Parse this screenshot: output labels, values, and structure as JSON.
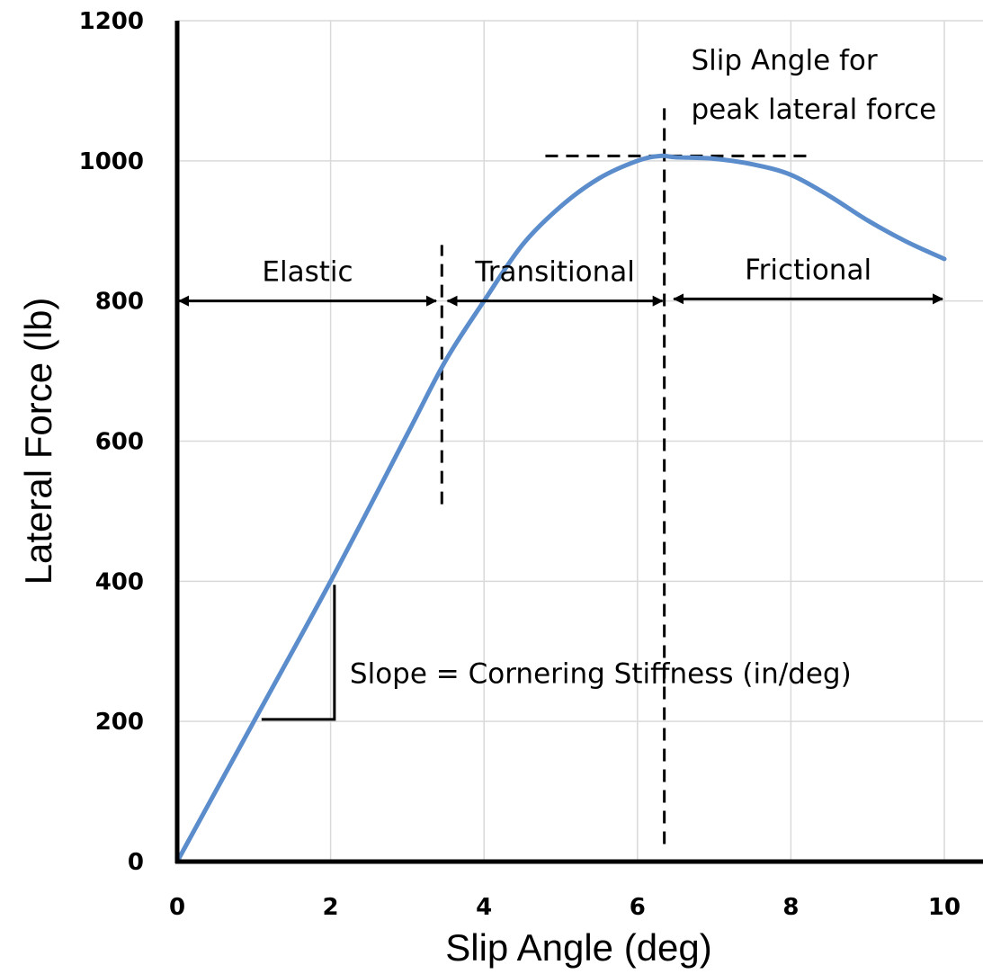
{
  "chart_data": {
    "type": "line",
    "title": "",
    "xlabel": "Slip Angle (deg)",
    "ylabel": "Lateral Force (lb)",
    "xlim": [
      0,
      10
    ],
    "ylim": [
      0,
      1200
    ],
    "x_ticks": [
      0,
      2,
      4,
      6,
      8,
      10
    ],
    "y_ticks": [
      0,
      200,
      400,
      600,
      800,
      1000,
      1200
    ],
    "grid": true,
    "series": [
      {
        "color": "#5b8ccb",
        "x": [
          0,
          1,
          2,
          3,
          3.5,
          4,
          4.5,
          5,
          5.5,
          6,
          6.3,
          6.5,
          7,
          7.5,
          8,
          8.5,
          9,
          9.5,
          10
        ],
        "y": [
          0,
          200,
          400,
          610,
          715,
          800,
          880,
          935,
          975,
          1000,
          1007,
          1005,
          1003,
          995,
          980,
          950,
          915,
          885,
          860
        ]
      }
    ],
    "regions": [
      {
        "label": "Elastic",
        "x_start": 0,
        "x_end": 3.4,
        "y": 800
      },
      {
        "label": "Transitional",
        "x_start": 3.5,
        "x_end": 6.35,
        "y": 800
      },
      {
        "label": "Frictional",
        "x_start": 6.45,
        "x_end": 10,
        "y": 803
      }
    ],
    "reference_lines": [
      {
        "orientation": "vertical",
        "x": 3.45,
        "y_from": 510,
        "y_to": 880
      },
      {
        "orientation": "vertical",
        "x": 6.35,
        "y_from": 25,
        "y_to": 1075
      },
      {
        "orientation": "horizontal",
        "y": 1007,
        "x_from": 4.8,
        "x_to": 8.2
      }
    ],
    "annotations": [
      {
        "text": "Slip Angle for",
        "x": 6.7,
        "y": 1130
      },
      {
        "text": "peak lateral force",
        "x": 6.7,
        "y": 1060
      },
      {
        "text": "Slope = Cornering Stiffness (in/deg)",
        "x": 2.25,
        "y": 255
      }
    ],
    "slope_triangle": {
      "x1": 1.1,
      "y1": 203,
      "x2": 2.05,
      "y2": 395
    }
  }
}
